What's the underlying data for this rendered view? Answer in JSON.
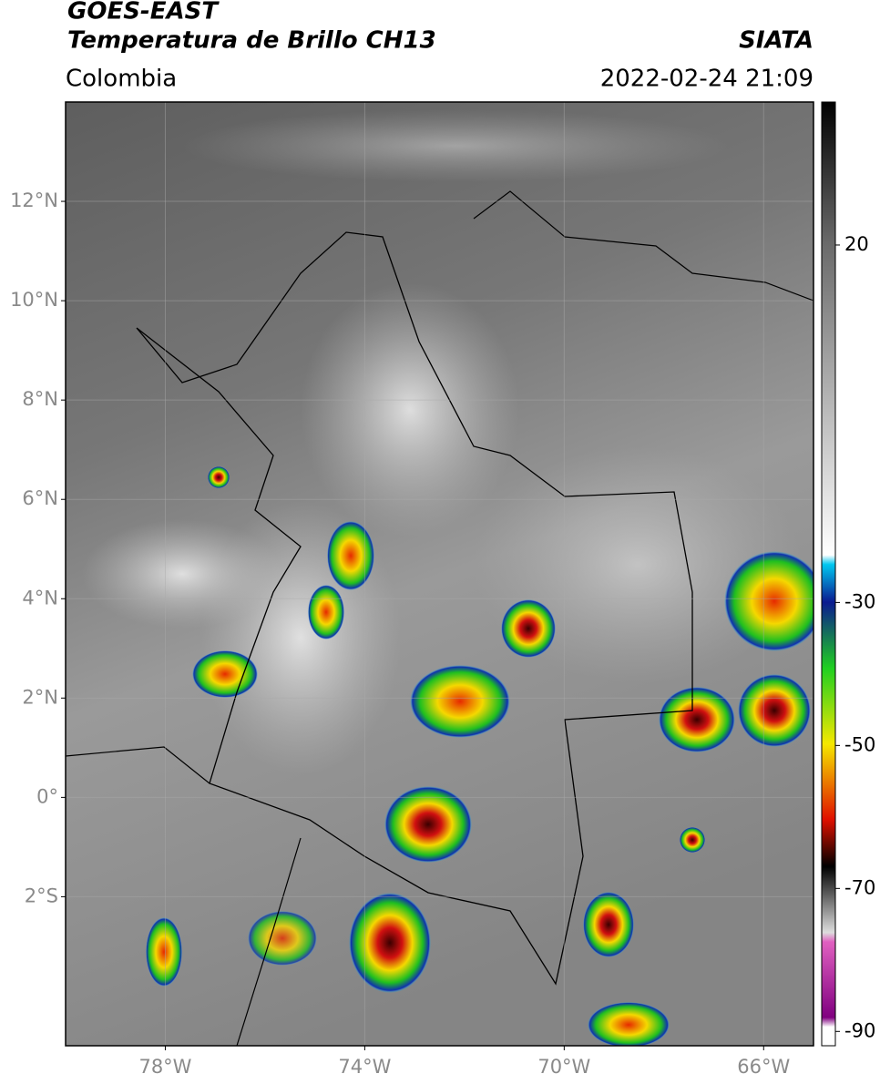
{
  "header": {
    "title": "GOES-EAST",
    "subtitle": "Temperatura de Brillo CH13",
    "region": "Colombia",
    "source": "SIATA",
    "datetime": "2022-02-24 21:09"
  },
  "map": {
    "xlim": [
      -80,
      -65
    ],
    "ylim": [
      -5,
      14
    ],
    "xticks": [
      {
        "value": -78,
        "label": "78°W"
      },
      {
        "value": -74,
        "label": "74°W"
      },
      {
        "value": -70,
        "label": "70°W"
      },
      {
        "value": -66,
        "label": "66°W"
      }
    ],
    "yticks": [
      {
        "value": 12,
        "label": "12°N"
      },
      {
        "value": 10,
        "label": "10°N"
      },
      {
        "value": 8,
        "label": "8°N"
      },
      {
        "value": 6,
        "label": "6°N"
      },
      {
        "value": 4,
        "label": "4°N"
      },
      {
        "value": 2,
        "label": "2°N"
      },
      {
        "value": 0,
        "label": "0°"
      },
      {
        "value": -2,
        "label": "2°S"
      }
    ],
    "grid": true
  },
  "colorbar": {
    "lim": [
      -92,
      40
    ],
    "ticks": [
      20,
      -30,
      -50,
      -70,
      -90
    ]
  }
}
